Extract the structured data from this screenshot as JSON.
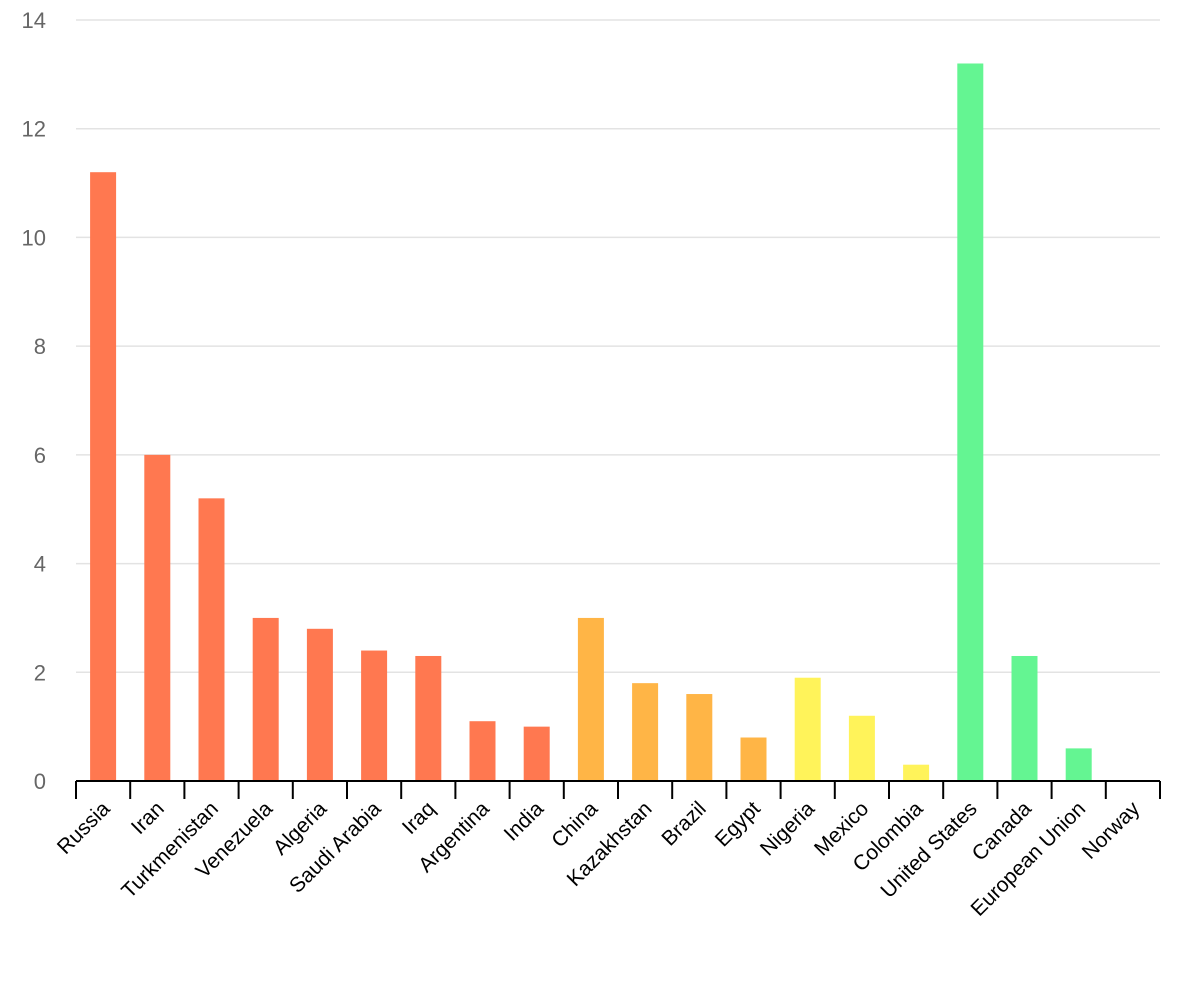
{
  "chart_data": {
    "type": "bar",
    "title": "",
    "xlabel": "",
    "ylabel": "",
    "ylim": [
      0,
      14
    ],
    "yticks": [
      0,
      2,
      4,
      6,
      8,
      10,
      12,
      14
    ],
    "grid": true,
    "categories": [
      "Russia",
      "Iran",
      "Turkmenistan",
      "Venezuela",
      "Algeria",
      "Saudi Arabia",
      "Iraq",
      "Argentina",
      "India",
      "China",
      "Kazakhstan",
      "Brazil",
      "Egypt",
      "Nigeria",
      "Mexico",
      "Colombia",
      "United States",
      "Canada",
      "European Union",
      "Norway"
    ],
    "values": [
      11.2,
      6.0,
      5.2,
      3.0,
      2.8,
      2.4,
      2.3,
      1.1,
      1.0,
      3.0,
      1.8,
      1.6,
      0.8,
      1.9,
      1.2,
      0.3,
      13.2,
      2.3,
      0.6,
      0.0
    ],
    "colors": [
      "#ff7850",
      "#ff7850",
      "#ff7850",
      "#ff7850",
      "#ff7850",
      "#ff7850",
      "#ff7850",
      "#ff7850",
      "#ff7850",
      "#ffb546",
      "#ffb546",
      "#ffb546",
      "#ffb546",
      "#fff35a",
      "#fff35a",
      "#fff35a",
      "#64f592",
      "#64f592",
      "#64f592",
      "#64f592"
    ]
  }
}
